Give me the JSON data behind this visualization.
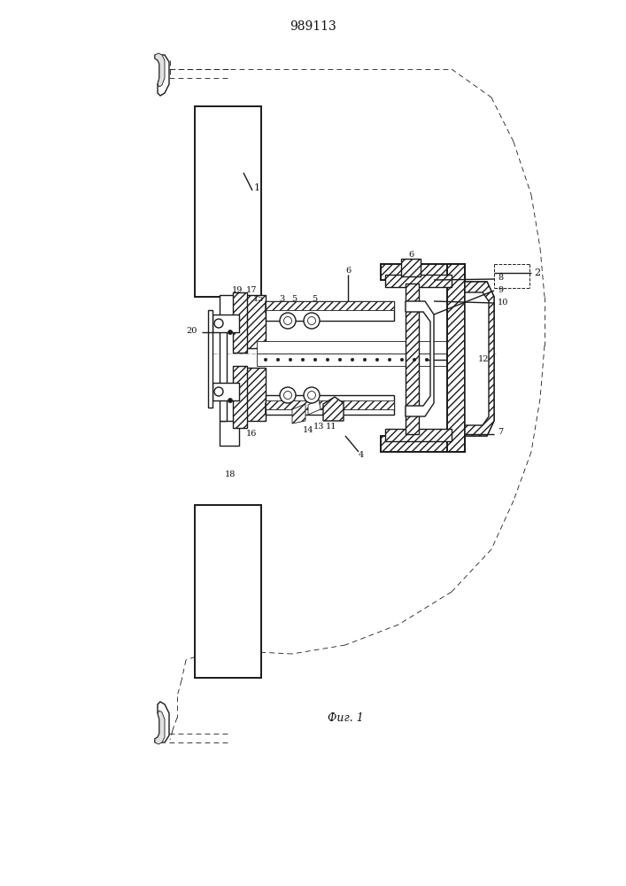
{
  "title": "989113",
  "caption": "Фиг. 1",
  "bg_color": "#ffffff",
  "line_color": "#1a1a1a",
  "label_color": "#111111",
  "title_fontsize": 10,
  "caption_fontsize": 9,
  "label_fontsize": 7,
  "figsize": [
    7.07,
    10.0
  ],
  "dpi": 100
}
